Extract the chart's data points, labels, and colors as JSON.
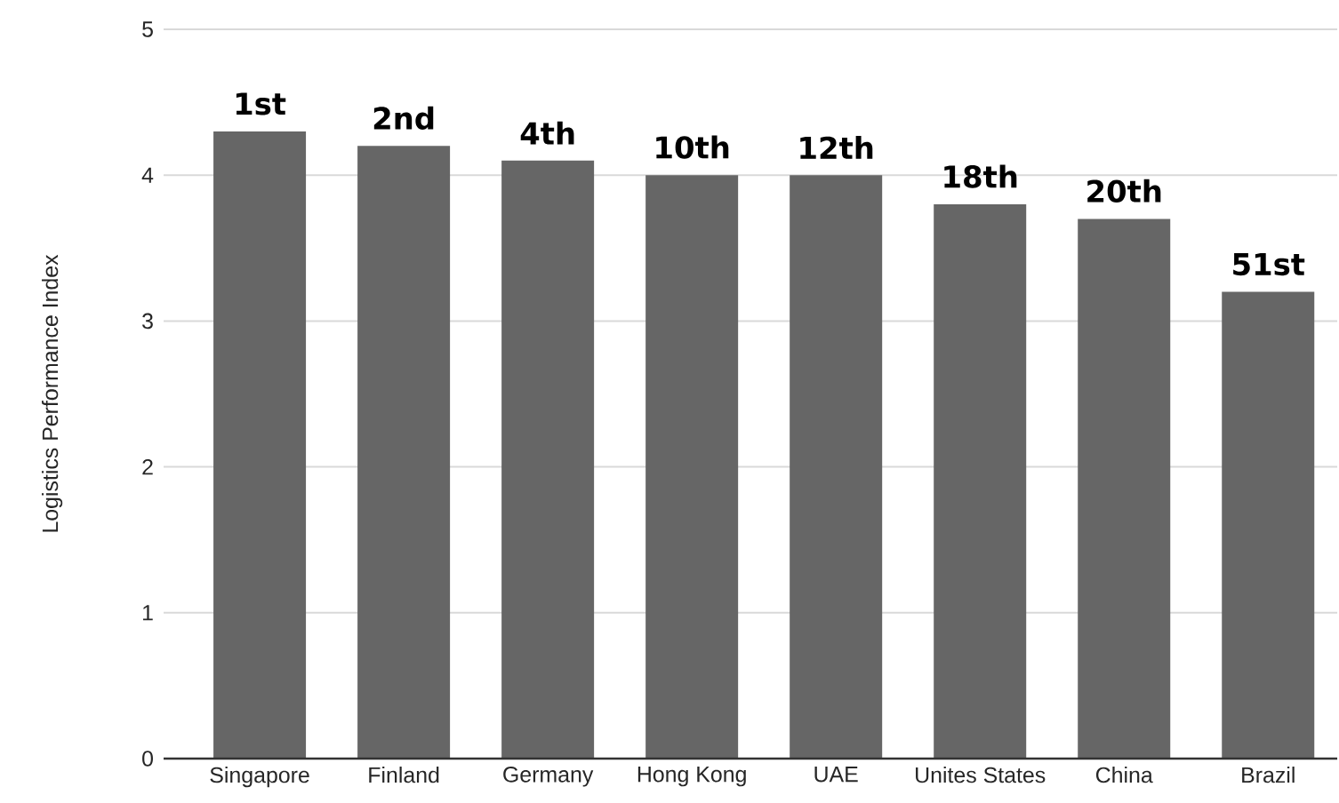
{
  "chart_data": {
    "type": "bar",
    "ylabel": "Logistics Performance Index",
    "categories": [
      "Singapore",
      "Finland",
      "Germany",
      "Hong Kong",
      "UAE",
      "Unites States",
      "China",
      "Brazil"
    ],
    "values": [
      4.3,
      4.2,
      4.1,
      4.0,
      4.0,
      3.8,
      3.7,
      3.2
    ],
    "color": "#666666",
    "ylim": [
      0,
      5
    ],
    "yticks": [
      0,
      1,
      2,
      3,
      4,
      5
    ],
    "grid": "y",
    "annotations": [
      {
        "text": "1st",
        "x": "Singapore",
        "y": 4.3
      },
      {
        "text": "2nd",
        "x": "Finland",
        "y": 4.2
      },
      {
        "text": "4th",
        "x": "Germany",
        "y": 4.1
      },
      {
        "text": "10th",
        "x": "Hong Kong",
        "y": 4.0
      },
      {
        "text": "12th",
        "x": "UAE",
        "y": 4.0
      },
      {
        "text": "18th",
        "x": "Unites States",
        "y": 3.8
      },
      {
        "text": "20th",
        "x": "China",
        "y": 3.7
      },
      {
        "text": "51st",
        "x": "Brazil",
        "y": 3.2
      }
    ]
  }
}
